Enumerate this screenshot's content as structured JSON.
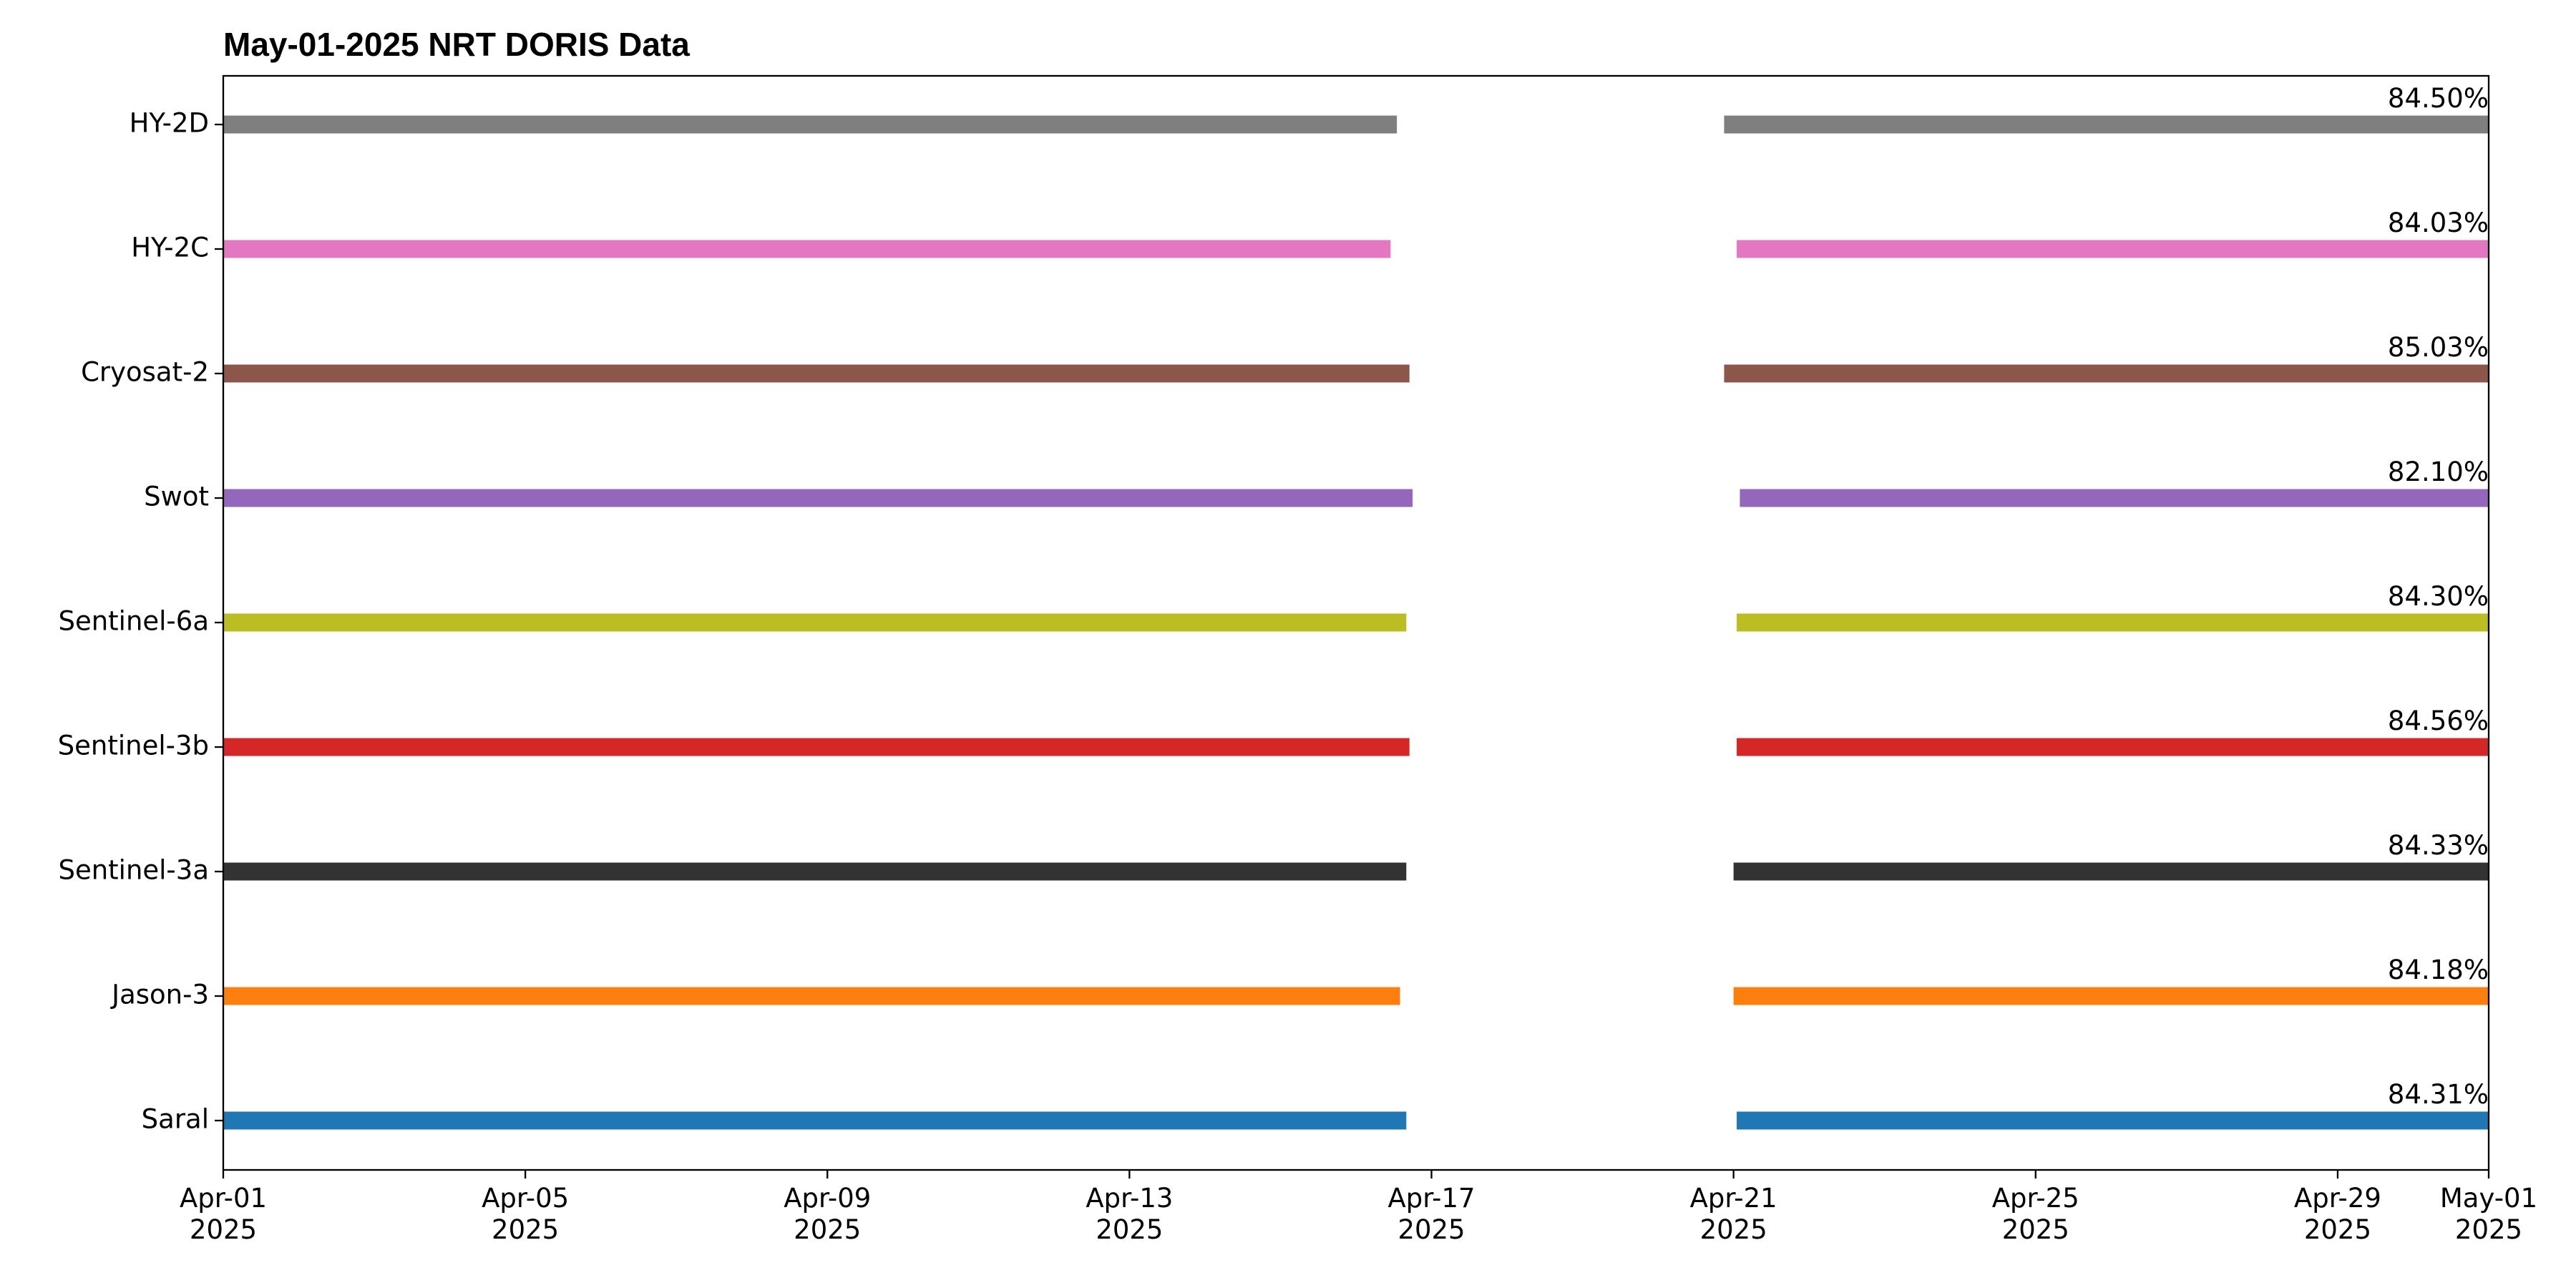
{
  "chart_data": {
    "type": "broken_barh",
    "title": "May-01-2025 NRT DORIS Data",
    "xlim": [
      "2025-04-01T00:00",
      "2025-05-01T00:00"
    ],
    "xticks": [
      {
        "value": "2025-04-01T00:00",
        "label": "Apr-01\n2025"
      },
      {
        "value": "2025-04-05T00:00",
        "label": "Apr-05\n2025"
      },
      {
        "value": "2025-04-09T00:00",
        "label": "Apr-09\n2025"
      },
      {
        "value": "2025-04-13T00:00",
        "label": "Apr-13\n2025"
      },
      {
        "value": "2025-04-17T00:00",
        "label": "Apr-17\n2025"
      },
      {
        "value": "2025-04-21T00:00",
        "label": "Apr-21\n2025"
      },
      {
        "value": "2025-04-25T00:00",
        "label": "Apr-25\n2025"
      },
      {
        "value": "2025-04-29T00:00",
        "label": "Apr-29\n2025"
      },
      {
        "value": "2025-05-01T00:00",
        "label": "May-01\n2025"
      }
    ],
    "series": [
      {
        "name": "Saral",
        "color": "#1f77b4",
        "start": [
          "2025-04-01T00:00",
          "2025-04-21T01:00"
        ],
        "end": [
          "2025-04-16T16:00",
          "2025-05-01T00:00"
        ],
        "values": [
          84.31
        ],
        "value_labels": [
          "84.31%"
        ]
      },
      {
        "name": "Jason-3",
        "color": "#ff7f0e",
        "start": [
          "2025-04-01T00:00",
          "2025-04-21T00:00"
        ],
        "end": [
          "2025-04-16T14:00",
          "2025-05-01T00:00"
        ],
        "values": [
          84.18
        ],
        "value_labels": [
          "84.18%"
        ]
      },
      {
        "name": "Sentinel-3a",
        "color": "#333333",
        "start": [
          "2025-04-01T00:00",
          "2025-04-21T00:00"
        ],
        "end": [
          "2025-04-16T16:00",
          "2025-05-01T00:00"
        ],
        "values": [
          84.33
        ],
        "value_labels": [
          "84.33%"
        ]
      },
      {
        "name": "Sentinel-3b",
        "color": "#d62728",
        "start": [
          "2025-04-01T00:00",
          "2025-04-21T01:00"
        ],
        "end": [
          "2025-04-16T17:00",
          "2025-05-01T00:00"
        ],
        "values": [
          84.56
        ],
        "value_labels": [
          "84.56%"
        ]
      },
      {
        "name": "Sentinel-6a",
        "color": "#bcbd22",
        "start": [
          "2025-04-01T00:00",
          "2025-04-21T01:00"
        ],
        "end": [
          "2025-04-16T16:00",
          "2025-05-01T00:00"
        ],
        "values": [
          84.3
        ],
        "value_labels": [
          "84.30%"
        ]
      },
      {
        "name": "Swot",
        "color": "#9467bd",
        "start": [
          "2025-04-01T00:00",
          "2025-04-21T02:00"
        ],
        "end": [
          "2025-04-16T18:00",
          "2025-05-01T00:00"
        ],
        "values": [
          82.1
        ],
        "value_labels": [
          "82.10%"
        ]
      },
      {
        "name": "Cryosat-2",
        "color": "#8c564b",
        "start": [
          "2025-04-01T00:00",
          "2025-04-20T21:00"
        ],
        "end": [
          "2025-04-16T17:00",
          "2025-05-01T00:00"
        ],
        "values": [
          85.03
        ],
        "value_labels": [
          "85.03%"
        ]
      },
      {
        "name": "HY-2C",
        "color": "#e377c2",
        "start": [
          "2025-04-01T00:00",
          "2025-04-21T01:00"
        ],
        "end": [
          "2025-04-16T11:00",
          "2025-05-01T00:00"
        ],
        "values": [
          84.03
        ],
        "value_labels": [
          "84.03%"
        ]
      },
      {
        "name": "HY-2D",
        "color": "#7f7f7f",
        "start": [
          "2025-04-01T00:00",
          "2025-04-20T21:00"
        ],
        "end": [
          "2025-04-16T13:00",
          "2025-05-01T00:00"
        ],
        "values": [
          84.5
        ],
        "value_labels": [
          "84.50%"
        ]
      }
    ]
  }
}
